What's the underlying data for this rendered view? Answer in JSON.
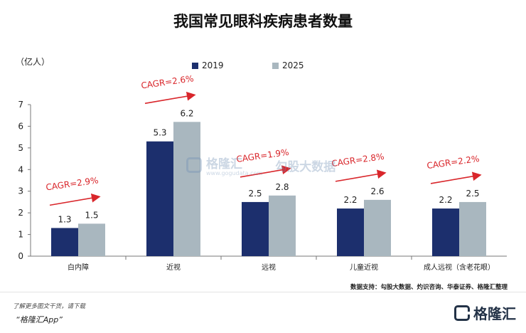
{
  "title": "我国常见眼科疾病患者数量",
  "unit_label": "（亿人）",
  "legend": [
    {
      "label": "2019",
      "color": "#1c2f6d"
    },
    {
      "label": "2025",
      "color": "#a9b7bf"
    }
  ],
  "chart_data": {
    "type": "bar",
    "title": "我国常见眼科疾病患者数量",
    "ylabel": "（亿人）",
    "xlabel": "",
    "ylim": [
      0,
      7
    ],
    "yticks": [
      0,
      1,
      2,
      3,
      4,
      5,
      6,
      7
    ],
    "grid": false,
    "legend_position": "top",
    "categories": [
      "白内障",
      "近视",
      "远视",
      "儿童近视",
      "成人远视（含老花眼）"
    ],
    "series": [
      {
        "name": "2019",
        "color": "#1c2f6d",
        "values": [
          1.3,
          5.3,
          2.5,
          2.2,
          2.2
        ],
        "labels": [
          "1.3",
          "5.3",
          "2.5",
          "2.2",
          "2.2"
        ]
      },
      {
        "name": "2025",
        "color": "#a9b7bf",
        "values": [
          1.5,
          6.2,
          2.8,
          2.6,
          2.5
        ],
        "labels": [
          "1.5",
          "6.2",
          "2.8",
          "2.6",
          "2.5"
        ]
      }
    ],
    "annotations": [
      "CAGR=2.9%",
      "CAGR=2.6%",
      "CAGR=1.9%",
      "CAGR=2.8%",
      "CAGR=2.2%"
    ],
    "annotation_color": "#d9262b"
  },
  "watermark": {
    "brand": "格隆汇",
    "data_brand": "勾股大数据",
    "url": "www.gogudata.com"
  },
  "source": "数据支持：勾股大数据、灼识咨询、华泰证券、格隆汇整理",
  "footer": {
    "note": "了解更多图文干货，请下载",
    "app": "“格隆汇App”",
    "brand": "格隆汇"
  }
}
